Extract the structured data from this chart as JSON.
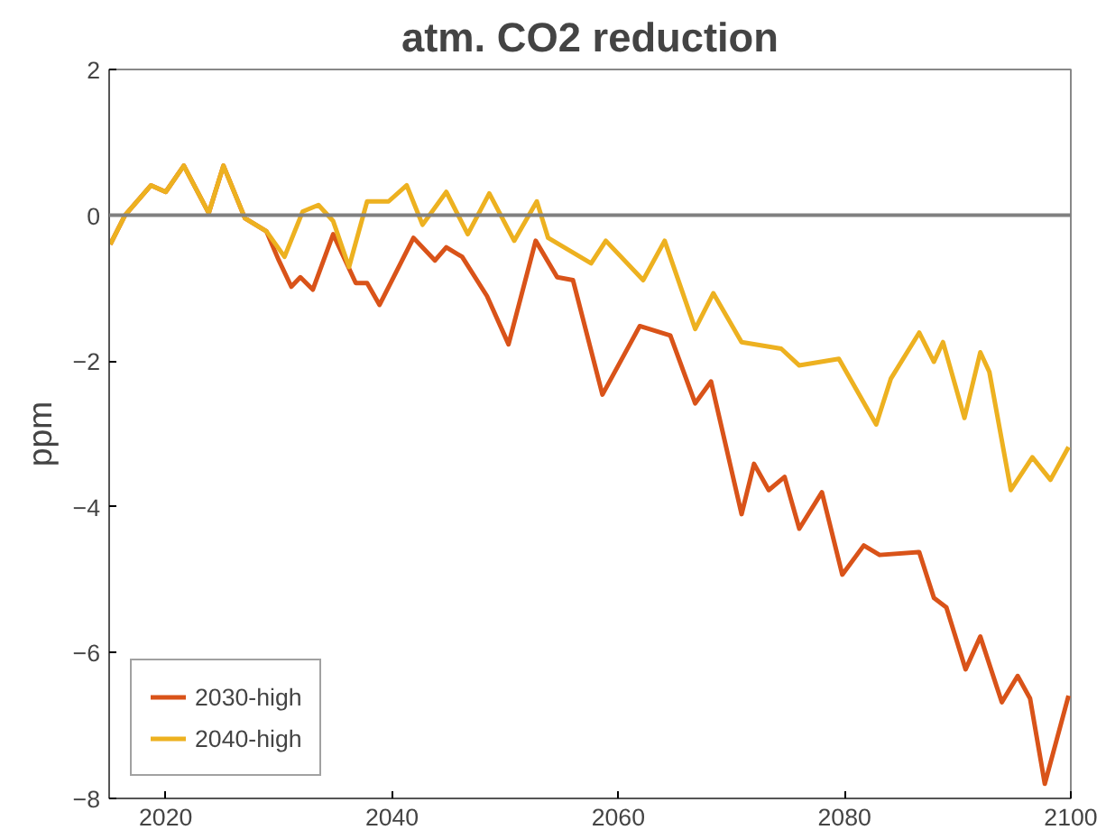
{
  "chart_data": {
    "type": "line",
    "title": "atm. CO2 reduction",
    "ylabel": "ppm",
    "xlim": [
      2015,
      2100
    ],
    "ylim": [
      -8,
      2
    ],
    "xticks": [
      2020,
      2040,
      2060,
      2080,
      2100
    ],
    "yticks": [
      -8,
      -6,
      -4,
      -2,
      0,
      2
    ],
    "grid": false,
    "legend": "bottom left",
    "line_style": "solid",
    "marker": "none",
    "ref_lines": [
      {
        "axis": "y",
        "value": 0,
        "color": "#808080"
      }
    ],
    "series": [
      {
        "name": "2030-high",
        "color": "#d95319",
        "x": [
          2015.1,
          2016.4,
          2018.7,
          2020,
          2021.6,
          2023.8,
          2025.1,
          2027,
          2028.9,
          2030,
          2031.1,
          2031.9,
          2033,
          2034.8,
          2036.8,
          2037.8,
          2038.9,
          2041.9,
          2043.8,
          2044.8,
          2046.2,
          2048.4,
          2050.3,
          2052.7,
          2054.6,
          2056,
          2058.6,
          2061.9,
          2064.6,
          2066.8,
          2068.2,
          2070.9,
          2072,
          2073.3,
          2074.7,
          2076,
          2078,
          2079.8,
          2081.7,
          2083.1,
          2086.6,
          2087.9,
          2089,
          2090.7,
          2092,
          2093.9,
          2095.3,
          2096.4,
          2097.7,
          2099.8
        ],
        "values": [
          -0.4,
          0.0,
          0.41,
          0.32,
          0.68,
          0.03,
          0.68,
          -0.04,
          -0.22,
          -0.62,
          -0.98,
          -0.85,
          -1.02,
          -0.26,
          -0.93,
          -0.93,
          -1.23,
          -0.31,
          -0.62,
          -0.44,
          -0.57,
          -1.11,
          -1.77,
          -0.35,
          -0.85,
          -0.89,
          -2.46,
          -1.52,
          -1.65,
          -2.58,
          -2.28,
          -4.1,
          -3.41,
          -3.77,
          -3.59,
          -4.3,
          -3.8,
          -4.93,
          -4.53,
          -4.66,
          -4.62,
          -5.25,
          -5.38,
          -6.23,
          -5.78,
          -6.68,
          -6.32,
          -6.63,
          -7.8,
          -6.59
        ]
      },
      {
        "name": "2040-high",
        "color": "#edb120",
        "x": [
          2015.1,
          2016.4,
          2018.7,
          2020,
          2021.6,
          2023.8,
          2025.1,
          2027,
          2028.9,
          2030.5,
          2032.1,
          2033.5,
          2034.8,
          2036.2,
          2037.8,
          2039.7,
          2041.3,
          2042.7,
          2044.8,
          2046.7,
          2048.6,
          2050.8,
          2052.8,
          2053.8,
          2057.6,
          2058.9,
          2062.2,
          2064.1,
          2066.8,
          2068.4,
          2070.9,
          2074.4,
          2076,
          2079.5,
          2082.8,
          2084.1,
          2086.6,
          2087.9,
          2088.7,
          2090.6,
          2092,
          2092.8,
          2094.7,
          2096.6,
          2098.2,
          2099.8
        ],
        "values": [
          -0.4,
          0.0,
          0.41,
          0.32,
          0.68,
          0.03,
          0.68,
          -0.04,
          -0.22,
          -0.57,
          0.05,
          0.14,
          -0.08,
          -0.71,
          0.19,
          0.19,
          0.41,
          -0.13,
          0.32,
          -0.26,
          0.3,
          -0.35,
          0.19,
          -0.31,
          -0.66,
          -0.35,
          -0.89,
          -0.35,
          -1.56,
          -1.07,
          -1.74,
          -1.83,
          -2.06,
          -1.97,
          -2.87,
          -2.24,
          -1.61,
          -2.01,
          -1.74,
          -2.78,
          -1.88,
          -2.15,
          -3.77,
          -3.32,
          -3.63,
          -3.18
        ]
      }
    ]
  }
}
